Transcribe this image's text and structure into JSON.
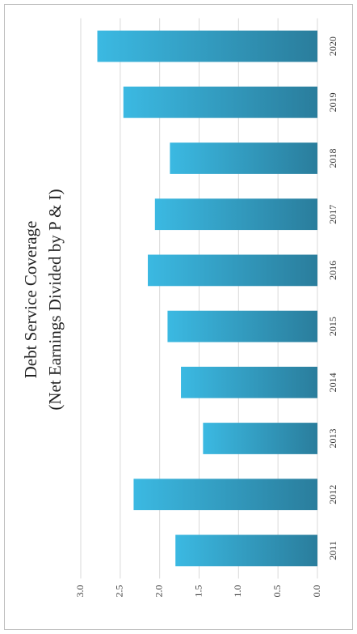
{
  "chart_data": {
    "type": "bar",
    "title": "Debt Service Coverage",
    "subtitle": "(Net Earnings Divided by P & I)",
    "categories": [
      "2011",
      "2012",
      "2013",
      "2014",
      "2015",
      "2016",
      "2017",
      "2018",
      "2019",
      "2020"
    ],
    "values": [
      1.8,
      2.33,
      1.45,
      1.73,
      1.9,
      2.15,
      2.06,
      1.87,
      2.46,
      2.79
    ],
    "color": "#3bb9e2",
    "ylim": [
      0,
      3
    ],
    "yticks": [
      {
        "value": 0,
        "label": "0.0"
      },
      0.5,
      {
        "value": 1,
        "label": "1.0"
      },
      1.5,
      {
        "value": 2,
        "label": "2.0"
      },
      2.5,
      {
        "value": 3,
        "label": "3.0"
      }
    ],
    "grid": true
  }
}
